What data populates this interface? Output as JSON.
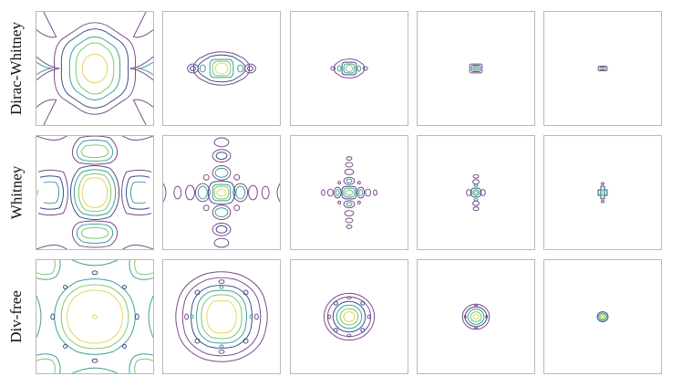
{
  "rows": [
    {
      "label": "Dirac-Whitney"
    },
    {
      "label": "Whitney"
    },
    {
      "label": "Div-free"
    }
  ],
  "colors": {
    "purple": "#7a4a8c",
    "navy": "#3a4c86",
    "teal": "#3e9e95",
    "green": "#7bc86a",
    "yellow": "#e3d75a",
    "frame": "#b9b9b9"
  }
}
